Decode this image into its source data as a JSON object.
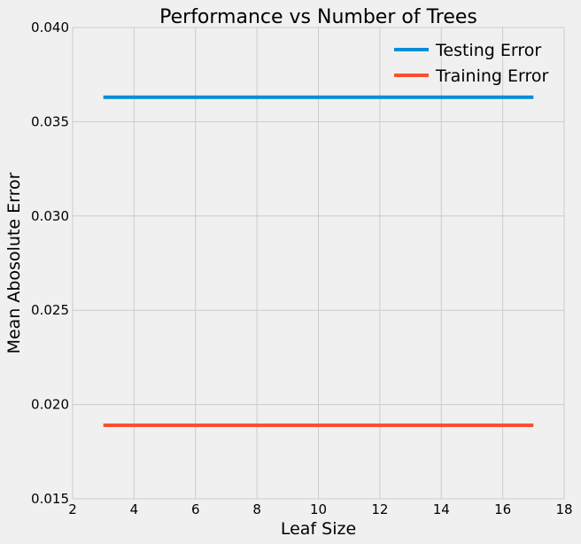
{
  "chart_data": {
    "type": "line",
    "title": "Performance vs Number of Trees",
    "xlabel": "Leaf Size",
    "ylabel": "Mean Abosolute Error",
    "xlim": [
      2,
      18
    ],
    "ylim": [
      0.015,
      0.04
    ],
    "x_ticks": [
      2,
      4,
      6,
      8,
      10,
      12,
      14,
      16,
      18
    ],
    "x_tick_labels": [
      "2",
      "4",
      "6",
      "8",
      "10",
      "12",
      "14",
      "16",
      "18"
    ],
    "y_ticks": [
      0.015,
      0.02,
      0.025,
      0.03,
      0.035,
      0.04
    ],
    "y_tick_labels": [
      "0.015",
      "0.020",
      "0.025",
      "0.030",
      "0.035",
      "0.040"
    ],
    "grid": true,
    "legend_position": "top-right",
    "x": [
      3,
      17
    ],
    "series": [
      {
        "name": "Testing Error",
        "color": "#008fd5",
        "values": [
          0.0363,
          0.0363
        ]
      },
      {
        "name": "Training Error",
        "color": "#fc4f30",
        "values": [
          0.0189,
          0.0189
        ]
      }
    ]
  }
}
